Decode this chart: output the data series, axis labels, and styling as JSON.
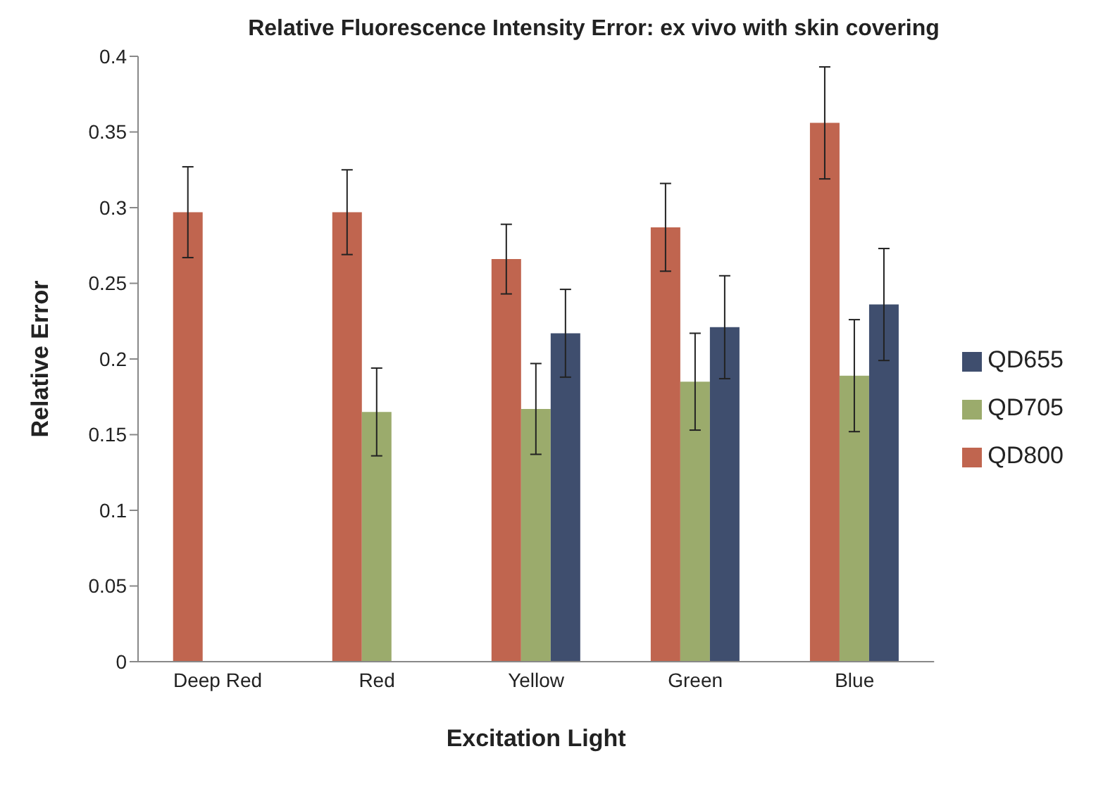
{
  "chart_data": {
    "type": "bar",
    "title": "Relative Fluorescence Intensity Error: ex vivo with skin covering",
    "xlabel": "Excitation Light",
    "ylabel": "Relative Error",
    "categories": [
      "Deep Red",
      "Red",
      "Yellow",
      "Green",
      "Blue"
    ],
    "series": [
      {
        "name": "QD800",
        "color": "#c0654f",
        "values": [
          0.297,
          0.297,
          0.266,
          0.287,
          0.356
        ],
        "errors": [
          0.03,
          0.028,
          0.023,
          0.029,
          0.037
        ]
      },
      {
        "name": "QD705",
        "color": "#9bab6c",
        "values": [
          null,
          0.165,
          0.167,
          0.185,
          0.189
        ],
        "errors": [
          null,
          0.029,
          0.03,
          0.032,
          0.037
        ]
      },
      {
        "name": "QD655",
        "color": "#3f4e6e",
        "values": [
          null,
          null,
          0.217,
          0.221,
          0.236
        ],
        "errors": [
          null,
          null,
          0.029,
          0.034,
          0.037
        ]
      }
    ],
    "ylim": [
      0,
      0.4
    ],
    "yticks": [
      0,
      0.05,
      0.1,
      0.15,
      0.2,
      0.25,
      0.3,
      0.35,
      0.4
    ],
    "grid": false,
    "legend": "right"
  }
}
